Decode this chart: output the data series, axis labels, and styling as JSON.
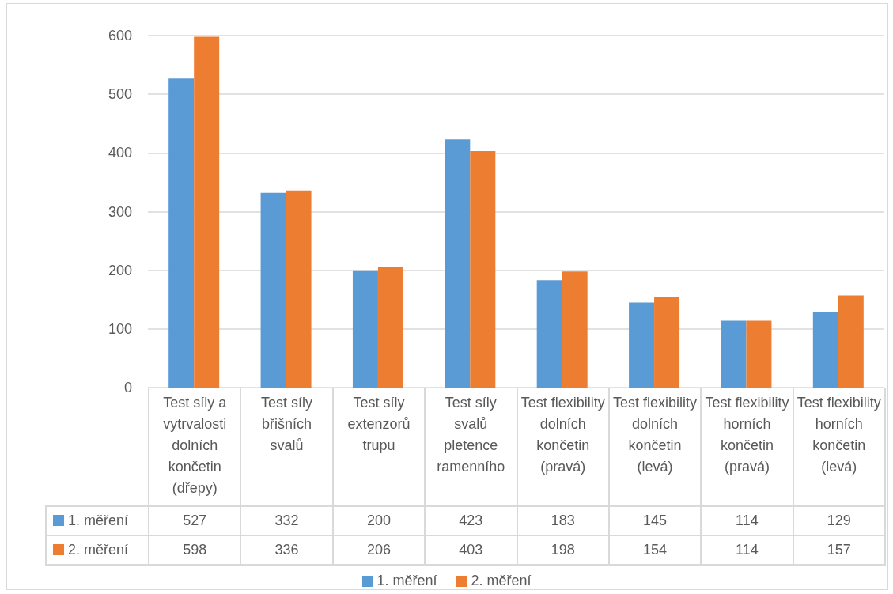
{
  "chart_data": {
    "type": "bar",
    "categories": [
      "Test síly a vytrvalosti dolních končetin (dřepy)",
      "Test síly břišních svalů",
      "Test síly extenzorů trupu",
      "Test síly svalů pletence ramenního",
      "Test flexibility dolních končetin (pravá)",
      "Test flexibility dolních končetin (levá)",
      "Test flexibility horních končetin (pravá)",
      "Test flexibility horních končetin (levá)"
    ],
    "series": [
      {
        "name": "1. měření",
        "color": "#5b9bd5",
        "values": [
          527,
          332,
          200,
          423,
          183,
          145,
          114,
          129
        ]
      },
      {
        "name": "2. měření",
        "color": "#ed7d31",
        "values": [
          598,
          336,
          206,
          403,
          198,
          154,
          114,
          157
        ]
      }
    ],
    "ylim": [
      0,
      600
    ],
    "yticks": [
      0,
      100,
      200,
      300,
      400,
      500,
      600
    ],
    "grid": "y",
    "legend": "bottom",
    "data_labels": true
  }
}
